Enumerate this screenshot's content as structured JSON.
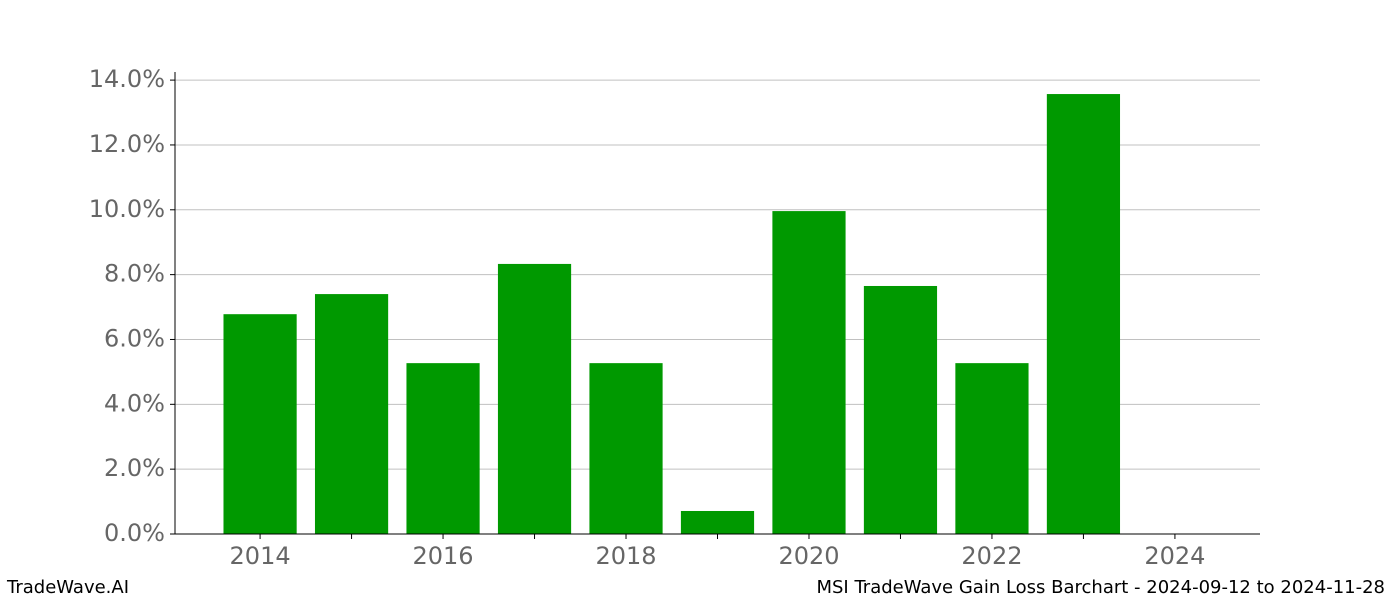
{
  "chart_data": {
    "type": "bar",
    "title": "MSI TradeWave Gain Loss Barchart - 2024-09-12 to 2024-11-28",
    "source": "TradeWave.AI",
    "x": [
      2014,
      2015,
      2016,
      2017,
      2018,
      2019,
      2020,
      2021,
      2022,
      2023
    ],
    "values": [
      6.78,
      7.4,
      5.27,
      8.33,
      5.27,
      0.71,
      9.96,
      7.65,
      5.27,
      13.57
    ],
    "color": "#009900",
    "xlim": [
      2013.07,
      2024.93
    ],
    "xticks": [
      2014,
      2016,
      2018,
      2020,
      2022,
      2024
    ],
    "xticks_minor": [
      2015,
      2017,
      2019,
      2021,
      2023
    ],
    "ylim": [
      0,
      14.25
    ],
    "yticks": [
      {
        "value": 0,
        "label": "0.0%"
      },
      {
        "value": 2,
        "label": "2.0%"
      },
      {
        "value": 4,
        "label": "4.0%"
      },
      {
        "value": 6,
        "label": "6.0%"
      },
      {
        "value": 8,
        "label": "8.0%"
      },
      {
        "value": 10,
        "label": "10.0%"
      },
      {
        "value": 12,
        "label": "12.0%"
      },
      {
        "value": 14,
        "label": "14.0%"
      }
    ],
    "grid": true
  }
}
